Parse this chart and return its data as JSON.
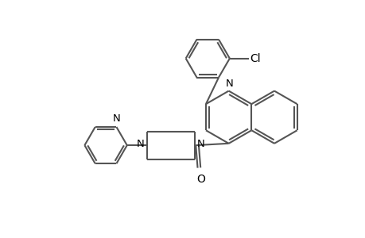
{
  "bg_color": "#ffffff",
  "line_color": "#555555",
  "text_color": "#000000",
  "lw": 1.5,
  "fs": 9.5,
  "figsize": [
    4.6,
    3.0
  ],
  "dpi": 100,
  "xlim": [
    -1,
    9
  ],
  "ylim": [
    -0.5,
    6
  ]
}
